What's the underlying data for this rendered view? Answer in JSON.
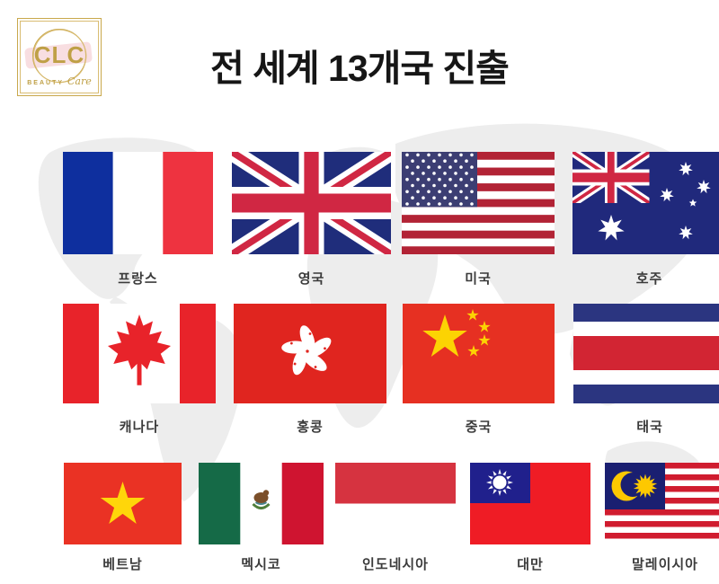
{
  "logo": {
    "brand": "CLC",
    "tagline_beauty": "BEAUTY",
    "tagline_care": "Care"
  },
  "header": {
    "title": "전 세계 13개국 진출"
  },
  "colors": {
    "brand_gold": "#bfa046",
    "brand_pink": "#f8dee1",
    "map_gray": "#ededed",
    "title_black": "#161616",
    "label_gray": "#3b3b3b",
    "accent_red": "#e0251f"
  },
  "flags": [
    {
      "id": "france",
      "label": "프랑스"
    },
    {
      "id": "uk",
      "label": "영국"
    },
    {
      "id": "usa",
      "label": "미국"
    },
    {
      "id": "australia",
      "label": "호주"
    },
    {
      "id": "canada",
      "label": "캐나다"
    },
    {
      "id": "hongkong",
      "label": "홍콩"
    },
    {
      "id": "china",
      "label": "중국"
    },
    {
      "id": "thailand",
      "label": "태국"
    },
    {
      "id": "vietnam",
      "label": "베트남"
    },
    {
      "id": "mexico",
      "label": "멕시코"
    },
    {
      "id": "indonesia",
      "label": "인도네시아"
    },
    {
      "id": "taiwan",
      "label": "대만"
    },
    {
      "id": "malaysia",
      "label": "말레이시아"
    }
  ]
}
